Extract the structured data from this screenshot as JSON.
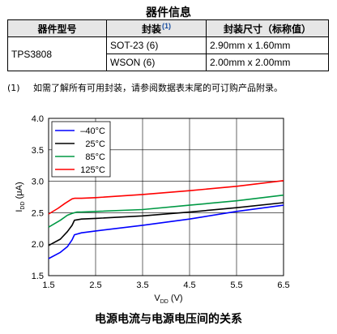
{
  "table": {
    "title": "器件信息",
    "headers": [
      "器件型号",
      "封装",
      "封装尺寸（标称值）"
    ],
    "header_footnote": "(1)",
    "device": "TPS3808",
    "rows": [
      {
        "package": "SOT-23 (6)",
        "size": "2.90mm x 1.60mm"
      },
      {
        "package": "WSON (6)",
        "size": "2.00mm x 2.00mm"
      }
    ]
  },
  "footnote": {
    "number": "(1)",
    "text": "如需了解所有可用封装，请参阅数据表末尾的可订购产品附录。"
  },
  "chart_data": {
    "type": "line",
    "title": "电源电流与电源电压间的关系",
    "xlabel": "VDD (V)",
    "xlabel_main": "V",
    "xlabel_sub": "DD",
    "xlabel_unit": " (V)",
    "ylabel": "IDD (μA)",
    "ylabel_main": "I",
    "ylabel_sub": "DD",
    "ylabel_unit": " (μA)",
    "xlim": [
      1.5,
      6.5
    ],
    "ylim": [
      1.5,
      4.0
    ],
    "xticks": [
      "1.5",
      "2.5",
      "3.5",
      "4.5",
      "5.5",
      "6.5"
    ],
    "yticks": [
      "1.5",
      "2.0",
      "2.5",
      "3.0",
      "3.5",
      "4.0"
    ],
    "grid": true,
    "legend_position": "top-left",
    "series": [
      {
        "name": "–40°C",
        "color": "#0000ff",
        "x": [
          1.5,
          1.75,
          1.9,
          2.0,
          2.05,
          2.2,
          2.5,
          3.5,
          4.5,
          5.5,
          6.5
        ],
        "y": [
          1.77,
          1.87,
          1.96,
          2.07,
          2.15,
          2.18,
          2.21,
          2.3,
          2.4,
          2.52,
          2.62
        ]
      },
      {
        "name": "25°C",
        "color": "#000000",
        "x": [
          1.5,
          1.75,
          1.9,
          2.0,
          2.05,
          2.2,
          2.5,
          3.5,
          4.5,
          5.5,
          6.5
        ],
        "y": [
          1.98,
          2.08,
          2.2,
          2.3,
          2.38,
          2.4,
          2.41,
          2.45,
          2.51,
          2.58,
          2.66
        ]
      },
      {
        "name": "85°C",
        "color": "#009944",
        "x": [
          1.5,
          1.75,
          1.9,
          2.0,
          2.1,
          2.2,
          2.5,
          3.5,
          4.5,
          5.5,
          6.5
        ],
        "y": [
          2.27,
          2.38,
          2.46,
          2.49,
          2.51,
          2.51,
          2.52,
          2.55,
          2.62,
          2.69,
          2.78
        ]
      },
      {
        "name": "125°C",
        "color": "#ff0000",
        "x": [
          1.5,
          1.7,
          1.85,
          2.0,
          2.05,
          2.2,
          2.5,
          3.5,
          4.5,
          5.5,
          6.5
        ],
        "y": [
          2.48,
          2.57,
          2.65,
          2.72,
          2.73,
          2.73,
          2.74,
          2.79,
          2.85,
          2.92,
          3.01
        ]
      }
    ]
  }
}
